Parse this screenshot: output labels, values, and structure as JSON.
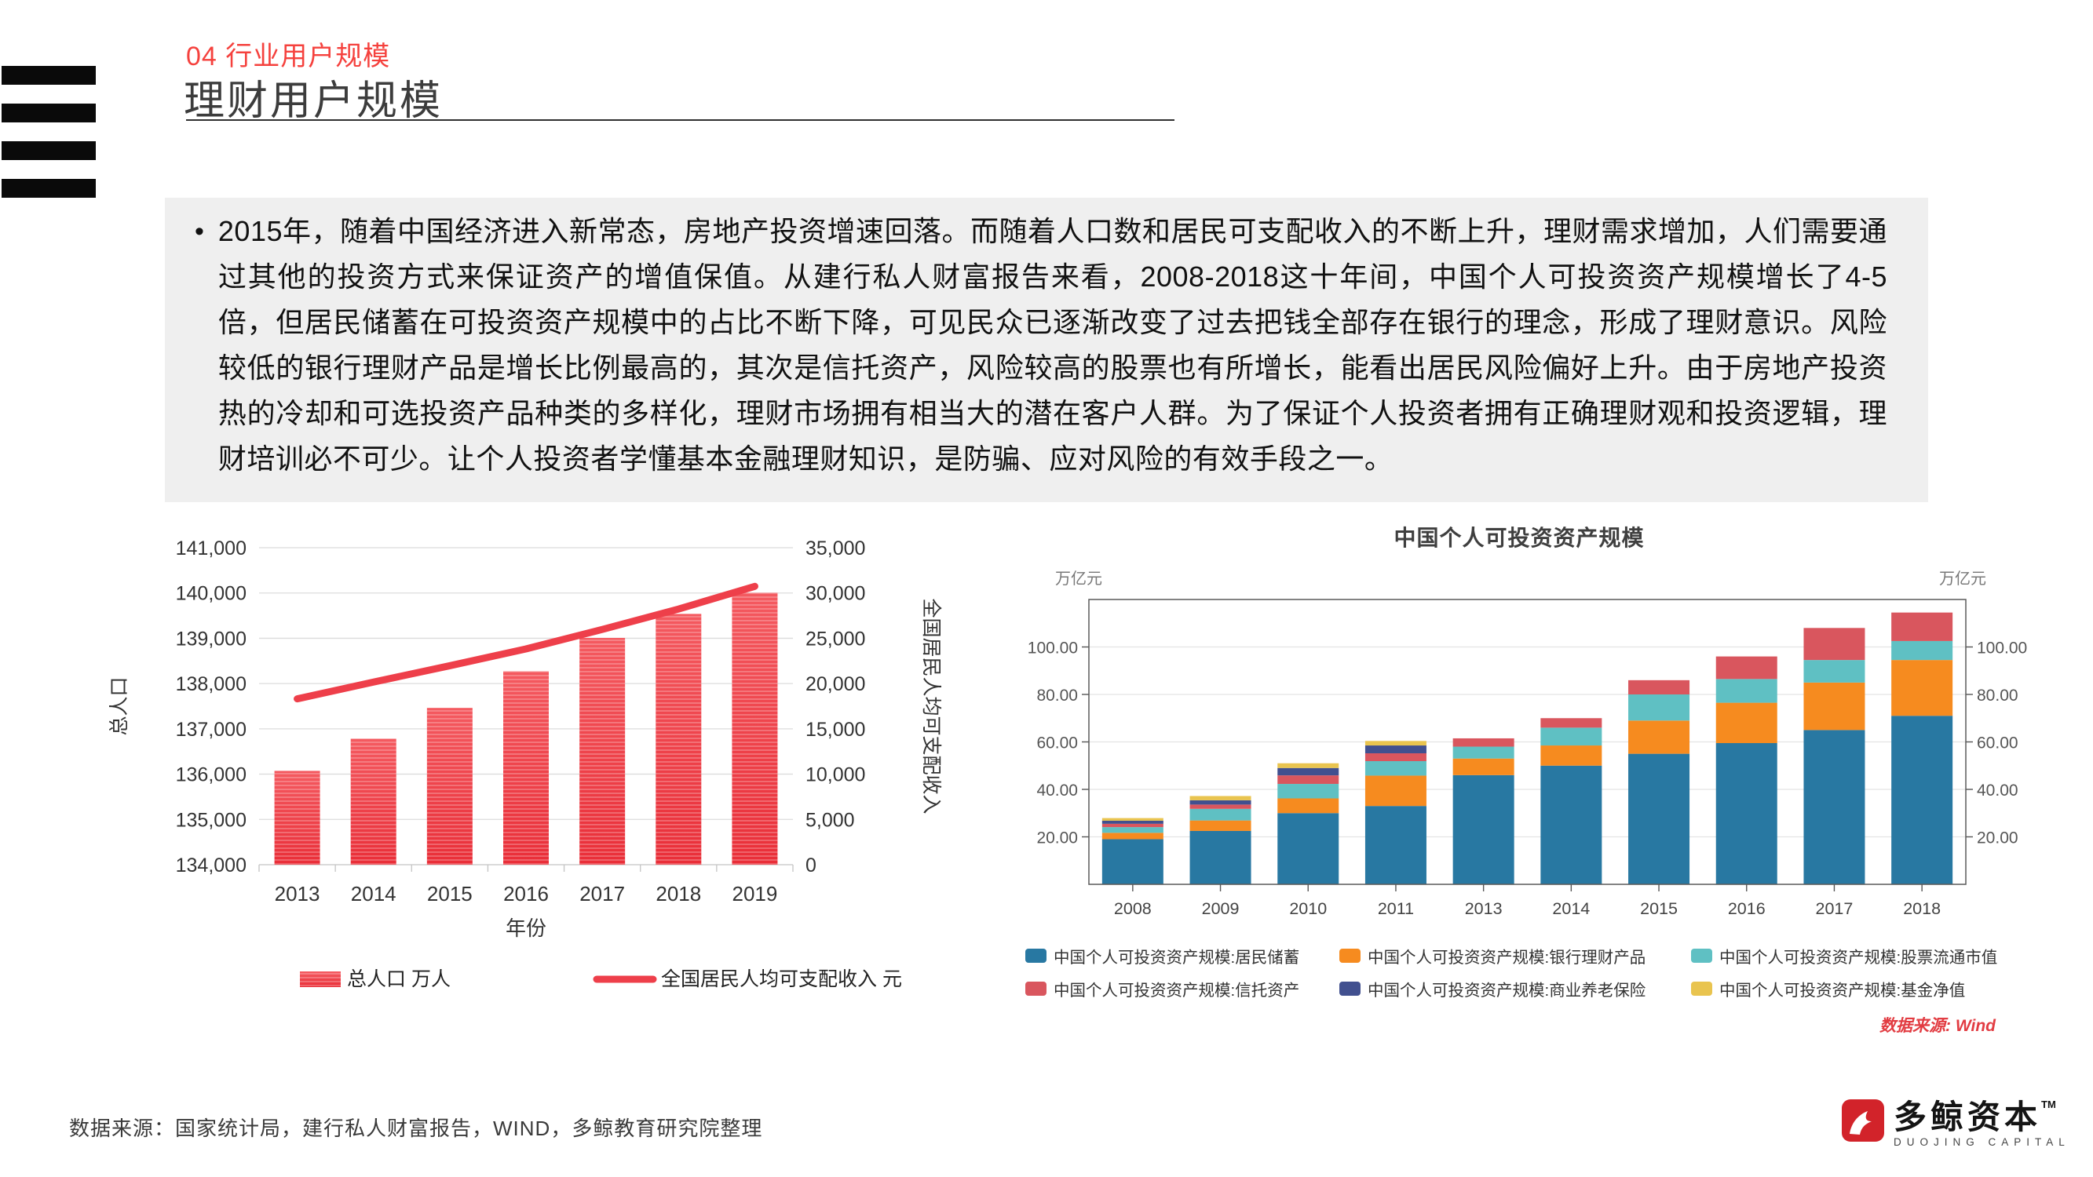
{
  "header": {
    "kicker": "04 行业用户规模",
    "title": "理财用户规模"
  },
  "body": {
    "bullet": "•",
    "text": "2015年，随着中国经济进入新常态，房地产投资增速回落。而随着人口数和居民可支配收入的不断上升，理财需求增加，人们需要通过其他的投资方式来保证资产的增值保值。从建行私人财富报告来看，2008-2018这十年间，中国个人可投资资产规模增长了4-5倍，但居民储蓄在可投资资产规模中的占比不断下降，可见民众已逐渐改变了过去把钱全部存在银行的理念，形成了理财意识。风险较低的银行理财产品是增长比例最高的，其次是信托资产，风险较高的股票也有所增长，能看出居民风险偏好上升。由于房地产投资热的冷却和可选投资产品种类的多样化，理财市场拥有相当大的潜在客户人群。为了保证个人投资者拥有正确理财观和投资逻辑，理财培训必不可少。让个人投资者学懂基本金融理财知识，是防骗、应对风险的有效手段之一。"
  },
  "footer": {
    "source": "数据来源：国家统计局，建行私人财富报告，WIND，多鲸教育研究院整理",
    "logo_cn": "多鲸资本",
    "logo_tm": "TM",
    "logo_en": "DUOJING CAPITAL"
  },
  "colors": {
    "accent_red": "#f5413d",
    "panel_bg": "#efefef",
    "logo_red": "#d2232a",
    "grid_light": "#dcdcdc"
  },
  "chart_data": [
    {
      "id": "population-income-chart",
      "type": "bar",
      "title": "",
      "categories": [
        "2013",
        "2014",
        "2015",
        "2016",
        "2017",
        "2018",
        "2019"
      ],
      "series": [
        {
          "name": "总人口 万人",
          "type": "bar",
          "axis": "left",
          "color_top": "#f45a60",
          "color_bottom": "#e92e38",
          "values": [
            136072,
            136782,
            137462,
            138271,
            139008,
            139538,
            140005
          ]
        },
        {
          "name": "全国居民人均可支配收入 元",
          "type": "line",
          "axis": "right",
          "color": "#ee3f4a",
          "values": [
            18311,
            20167,
            21966,
            23821,
            25974,
            28228,
            30733
          ]
        }
      ],
      "left_axis": {
        "title": "总人口",
        "min": 134000,
        "max": 141000,
        "step": 1000
      },
      "right_axis": {
        "title": "全国居民人均可支配收入",
        "min": 0,
        "max": 35000,
        "step": 5000
      },
      "xlabel": "年份",
      "grid": true,
      "legend_position": "bottom"
    },
    {
      "id": "investable-assets-chart",
      "type": "bar",
      "stacked": true,
      "title": "中国个人可投资资产规模",
      "unit_left": "万亿元",
      "unit_right": "万亿元",
      "categories": [
        "2008",
        "2009",
        "2010",
        "2011",
        "2013",
        "2014",
        "2015",
        "2016",
        "2017",
        "2018"
      ],
      "series": [
        {
          "name": "中国个人可投资资产规模:居民储蓄",
          "color": "#2878a2",
          "values": [
            19,
            22.5,
            30,
            33,
            46,
            50,
            55,
            59.5,
            65,
            71
          ]
        },
        {
          "name": "中国个人可投资资产规模:银行理财产品",
          "color": "#f68b1f",
          "values": [
            2.7,
            4.4,
            6.2,
            12.8,
            7,
            8.5,
            14,
            17,
            20,
            23.5
          ]
        },
        {
          "name": "中国个人可投资资产规模:股票流通市值",
          "color": "#5fc0c3",
          "values": [
            2.4,
            4.9,
            6.1,
            6.1,
            5,
            7.5,
            11,
            10,
            9.5,
            8
          ]
        },
        {
          "name": "中国个人可投资资产规模:信托资产",
          "color": "#d9565e",
          "values": [
            1.4,
            1.8,
            3.6,
            3.3,
            3.5,
            4,
            6,
            9.5,
            13.5,
            12
          ]
        },
        {
          "name": "中国个人可投资资产规模:商业养老保险",
          "color": "#41508f",
          "values": [
            1.3,
            1.8,
            3.1,
            3.3,
            0,
            0,
            0,
            0,
            0,
            0
          ]
        },
        {
          "name": "中国个人可投资资产规模:基金净值",
          "color": "#e9c44f",
          "values": [
            1.1,
            1.8,
            2.0,
            1.9,
            0,
            0,
            0,
            0,
            0,
            0
          ]
        }
      ],
      "y_axis": {
        "min": 0,
        "max": 120,
        "ticks": [
          20,
          40,
          60,
          80,
          100
        ],
        "decimals": 2
      },
      "grid": true,
      "legend_position": "bottom",
      "source_note": "数据来源: Wind"
    }
  ]
}
